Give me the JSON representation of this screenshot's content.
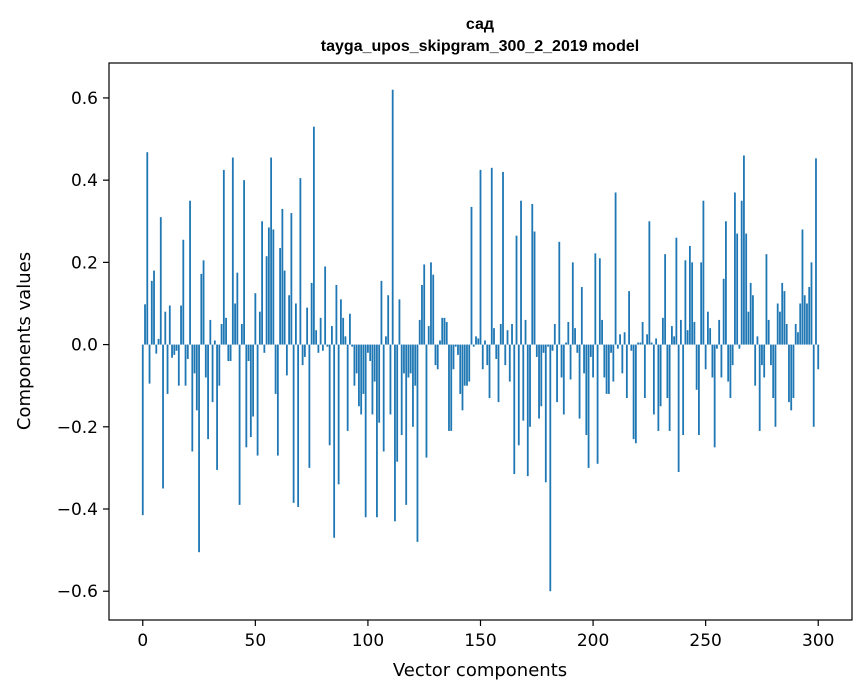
{
  "chart_data": {
    "type": "bar",
    "title": "сад",
    "subtitle": "tayga_upos_skipgram_300_2_2019 model",
    "xlabel": "Vector components",
    "ylabel": "Components values",
    "xlim": [
      -15,
      315
    ],
    "ylim": [
      -0.67,
      0.685
    ],
    "xticks": [
      0,
      50,
      100,
      150,
      200,
      250,
      300
    ],
    "yticks": [
      -0.6,
      -0.4,
      -0.2,
      0.0,
      0.2,
      0.4,
      0.6
    ],
    "xtick_labels": [
      "0",
      "50",
      "100",
      "150",
      "200",
      "250",
      "300"
    ],
    "ytick_labels": [
      "−0.6",
      "−0.4",
      "−0.2",
      "0.0",
      "0.2",
      "0.4",
      "0.6"
    ],
    "grid": false,
    "bar_color": "#1f77b4",
    "x_start": 0,
    "values": [
      -0.415,
      0.098,
      0.468,
      -0.095,
      0.155,
      0.18,
      -0.022,
      0.014,
      0.31,
      -0.35,
      0.08,
      -0.12,
      0.095,
      -0.032,
      -0.025,
      -0.015,
      -0.1,
      0.095,
      0.255,
      -0.1,
      -0.035,
      0.35,
      -0.26,
      -0.07,
      -0.16,
      -0.505,
      0.172,
      0.205,
      -0.08,
      -0.23,
      0.06,
      -0.14,
      0.01,
      -0.305,
      -0.1,
      0.05,
      0.425,
      0.065,
      -0.04,
      -0.04,
      0.455,
      0.1,
      0.175,
      -0.39,
      0.05,
      0.4,
      -0.25,
      -0.04,
      -0.225,
      -0.175,
      0.125,
      -0.27,
      0.08,
      0.3,
      -0.02,
      0.215,
      0.285,
      0.455,
      0.28,
      -0.12,
      -0.27,
      0.235,
      0.33,
      0.18,
      -0.075,
      0.12,
      0.32,
      -0.385,
      0.1,
      -0.395,
      0.405,
      -0.05,
      -0.03,
      0.09,
      -0.3,
      0.15,
      0.53,
      0.035,
      -0.02,
      0.065,
      -0.015,
      0.19,
      -0.005,
      -0.245,
      0.045,
      -0.47,
      0.145,
      -0.34,
      0.11,
      0.065,
      0.02,
      -0.21,
      0.075,
      -0.005,
      -0.1,
      -0.07,
      -0.15,
      -0.17,
      -0.12,
      -0.42,
      -0.02,
      -0.04,
      -0.17,
      -0.09,
      -0.42,
      -0.19,
      0.155,
      -0.26,
      0.02,
      0.12,
      -0.17,
      0.62,
      -0.43,
      -0.285,
      0.11,
      -0.22,
      -0.07,
      -0.39,
      -0.08,
      -0.07,
      -0.2,
      -0.1,
      -0.48,
      0.06,
      0.145,
      0.195,
      -0.275,
      0.045,
      0.2,
      0.17,
      -0.05,
      -0.06,
      0.01,
      0.065,
      0.065,
      0.055,
      -0.21,
      -0.21,
      -0.06,
      -0.005,
      -0.025,
      -0.12,
      -0.16,
      -0.1,
      -0.1,
      -0.09,
      0.335,
      -0.005,
      0.02,
      0.015,
      0.425,
      -0.06,
      0.01,
      -0.05,
      -0.13,
      0.43,
      0.04,
      -0.035,
      -0.14,
      0.05,
      0.42,
      -0.05,
      0.035,
      -0.09,
      0.05,
      -0.315,
      0.265,
      -0.245,
      0.35,
      -0.185,
      0.06,
      -0.32,
      -0.2,
      0.342,
      0.275,
      -0.03,
      -0.18,
      -0.15,
      -0.02,
      -0.335,
      -0.005,
      -0.6,
      -0.015,
      0.05,
      -0.14,
      0.25,
      -0.08,
      -0.17,
      0.005,
      0.055,
      -0.085,
      0.2,
      0.04,
      -0.02,
      -0.18,
      0.14,
      -0.07,
      -0.22,
      -0.3,
      -0.03,
      -0.08,
      0.222,
      -0.29,
      0.21,
      0.06,
      -0.08,
      -0.12,
      -0.12,
      -0.02,
      -0.09,
      0.37,
      -0.01,
      0.025,
      -0.07,
      0.03,
      -0.13,
      0.13,
      -0.015,
      -0.23,
      -0.24,
      0.005,
      0.005,
      0.055,
      -0.13,
      0.025,
      0.3,
      0.005,
      -0.17,
      0.015,
      -0.21,
      -0.15,
      0.065,
      0.22,
      -0.13,
      -0.21,
      0.045,
      0.02,
      0.26,
      -0.31,
      0.06,
      -0.22,
      0.205,
      0.035,
      0.24,
      0.2,
      0.055,
      -0.11,
      -0.22,
      0.2,
      0.35,
      -0.06,
      0.08,
      0.04,
      -0.08,
      -0.25,
      -0.01,
      0.06,
      -0.08,
      0.16,
      0.3,
      -0.09,
      -0.13,
      -0.05,
      0.37,
      0.27,
      -0.01,
      0.35,
      0.46,
      0.27,
      0.08,
      0.15,
      0.12,
      -0.1,
      0.02,
      -0.21,
      -0.05,
      -0.08,
      0.22,
      0.06,
      -0.05,
      -0.13,
      -0.2,
      0.1,
      0.08,
      0.15,
      0.13,
      0.05,
      -0.14,
      -0.16,
      -0.13,
      0.05,
      0.03,
      0.1,
      0.28,
      0.12,
      0.1,
      0.14,
      0.2,
      -0.2,
      0.453,
      -0.06
    ]
  }
}
